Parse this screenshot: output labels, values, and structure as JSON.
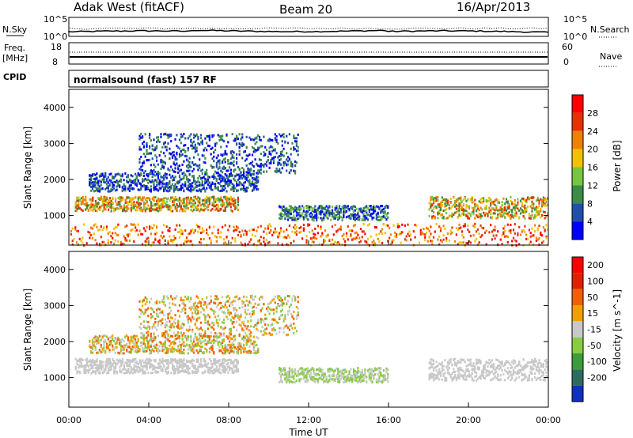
{
  "header": {
    "station": "Adak West (fitACF)",
    "beam": "Beam 20",
    "date": "16/Apr/2013"
  },
  "status_panels": {
    "nsky_label": "N.Sky",
    "nsearch_label": "N.Search",
    "freq_label_1": "Freq.",
    "freq_label_2": "[MHz]",
    "nave_label": "Nave",
    "cpid_label": "CPID",
    "noise_tick_top": "10^5",
    "noise_tick_bottom": "10^0",
    "freq_tick_top": "18",
    "freq_tick_bottom": "8",
    "nave_tick_top": "60",
    "nave_tick_bottom": "0",
    "cpid_text": "normalsound (fast) 157 RF"
  },
  "chart_data": [
    {
      "type": "heatmap",
      "panel": "power",
      "ylabel": "Slant Range [km]",
      "xlabel": "Time UT",
      "x_ticks": [
        "00:00",
        "04:00",
        "08:00",
        "12:00",
        "16:00",
        "20:00",
        "00:00"
      ],
      "x_range_hours": [
        0,
        24
      ],
      "ylim": [
        180,
        4500
      ],
      "y_ticks": [
        1000,
        2000,
        3000,
        4000
      ],
      "colorbar": {
        "label": "Power [dB]",
        "ticks": [
          "4",
          "8",
          "12",
          "16",
          "20",
          "24",
          "28"
        ],
        "range": [
          0,
          30
        ],
        "colors": [
          "#0000ff",
          "#1f4fa8",
          "#3c8c46",
          "#77c642",
          "#f2c200",
          "#f08000",
          "#e83000",
          "#ff0000"
        ]
      },
      "echo_bands": [
        {
          "t0": 0.3,
          "t1": 8.5,
          "r0": 1150,
          "r1": 1550,
          "level": "strong"
        },
        {
          "t0": 1.0,
          "t1": 9.5,
          "r0": 1700,
          "r1": 2200,
          "level": "weak"
        },
        {
          "t0": 3.5,
          "t1": 11.5,
          "r0": 2200,
          "r1": 3300,
          "level": "weak"
        },
        {
          "t0": 10.5,
          "t1": 16.0,
          "r0": 900,
          "r1": 1300,
          "level": "medium"
        },
        {
          "t0": 18.0,
          "t1": 24.0,
          "r0": 950,
          "r1": 1550,
          "level": "strong"
        },
        {
          "t0": 0.0,
          "t1": 24.0,
          "r0": 200,
          "r1": 800,
          "level": "scatter"
        }
      ]
    },
    {
      "type": "heatmap",
      "panel": "velocity",
      "ylabel": "Slant Range [km]",
      "xlabel": "Time UT",
      "x_ticks": [
        "00:00",
        "04:00",
        "08:00",
        "12:00",
        "16:00",
        "20:00",
        "00:00"
      ],
      "x_range_hours": [
        0,
        24
      ],
      "ylim": [
        180,
        4500
      ],
      "y_ticks": [
        1000,
        2000,
        3000,
        4000
      ],
      "colorbar": {
        "label": "Velocity [m s^-1]",
        "ticks": [
          "200",
          "100",
          "50",
          "15",
          "-15",
          "-50",
          "-100",
          "-200"
        ],
        "range": [
          -250,
          250
        ],
        "colors": [
          "#1030c0",
          "#2f6a60",
          "#3c9c3c",
          "#88cc44",
          "#c8c8c8",
          "#f0a000",
          "#f06000",
          "#e02000",
          "#ff0000"
        ]
      },
      "echo_bands": [
        {
          "t0": 0.3,
          "t1": 8.5,
          "r0": 1150,
          "r1": 1550,
          "level": "ground"
        },
        {
          "t0": 1.0,
          "t1": 9.5,
          "r0": 1700,
          "r1": 2200,
          "level": "mixed"
        },
        {
          "t0": 3.5,
          "t1": 11.5,
          "r0": 2200,
          "r1": 3300,
          "level": "mixed"
        },
        {
          "t0": 10.5,
          "t1": 16.0,
          "r0": 900,
          "r1": 1300,
          "level": "green"
        },
        {
          "t0": 18.0,
          "t1": 24.0,
          "r0": 950,
          "r1": 1550,
          "level": "ground"
        }
      ]
    }
  ]
}
